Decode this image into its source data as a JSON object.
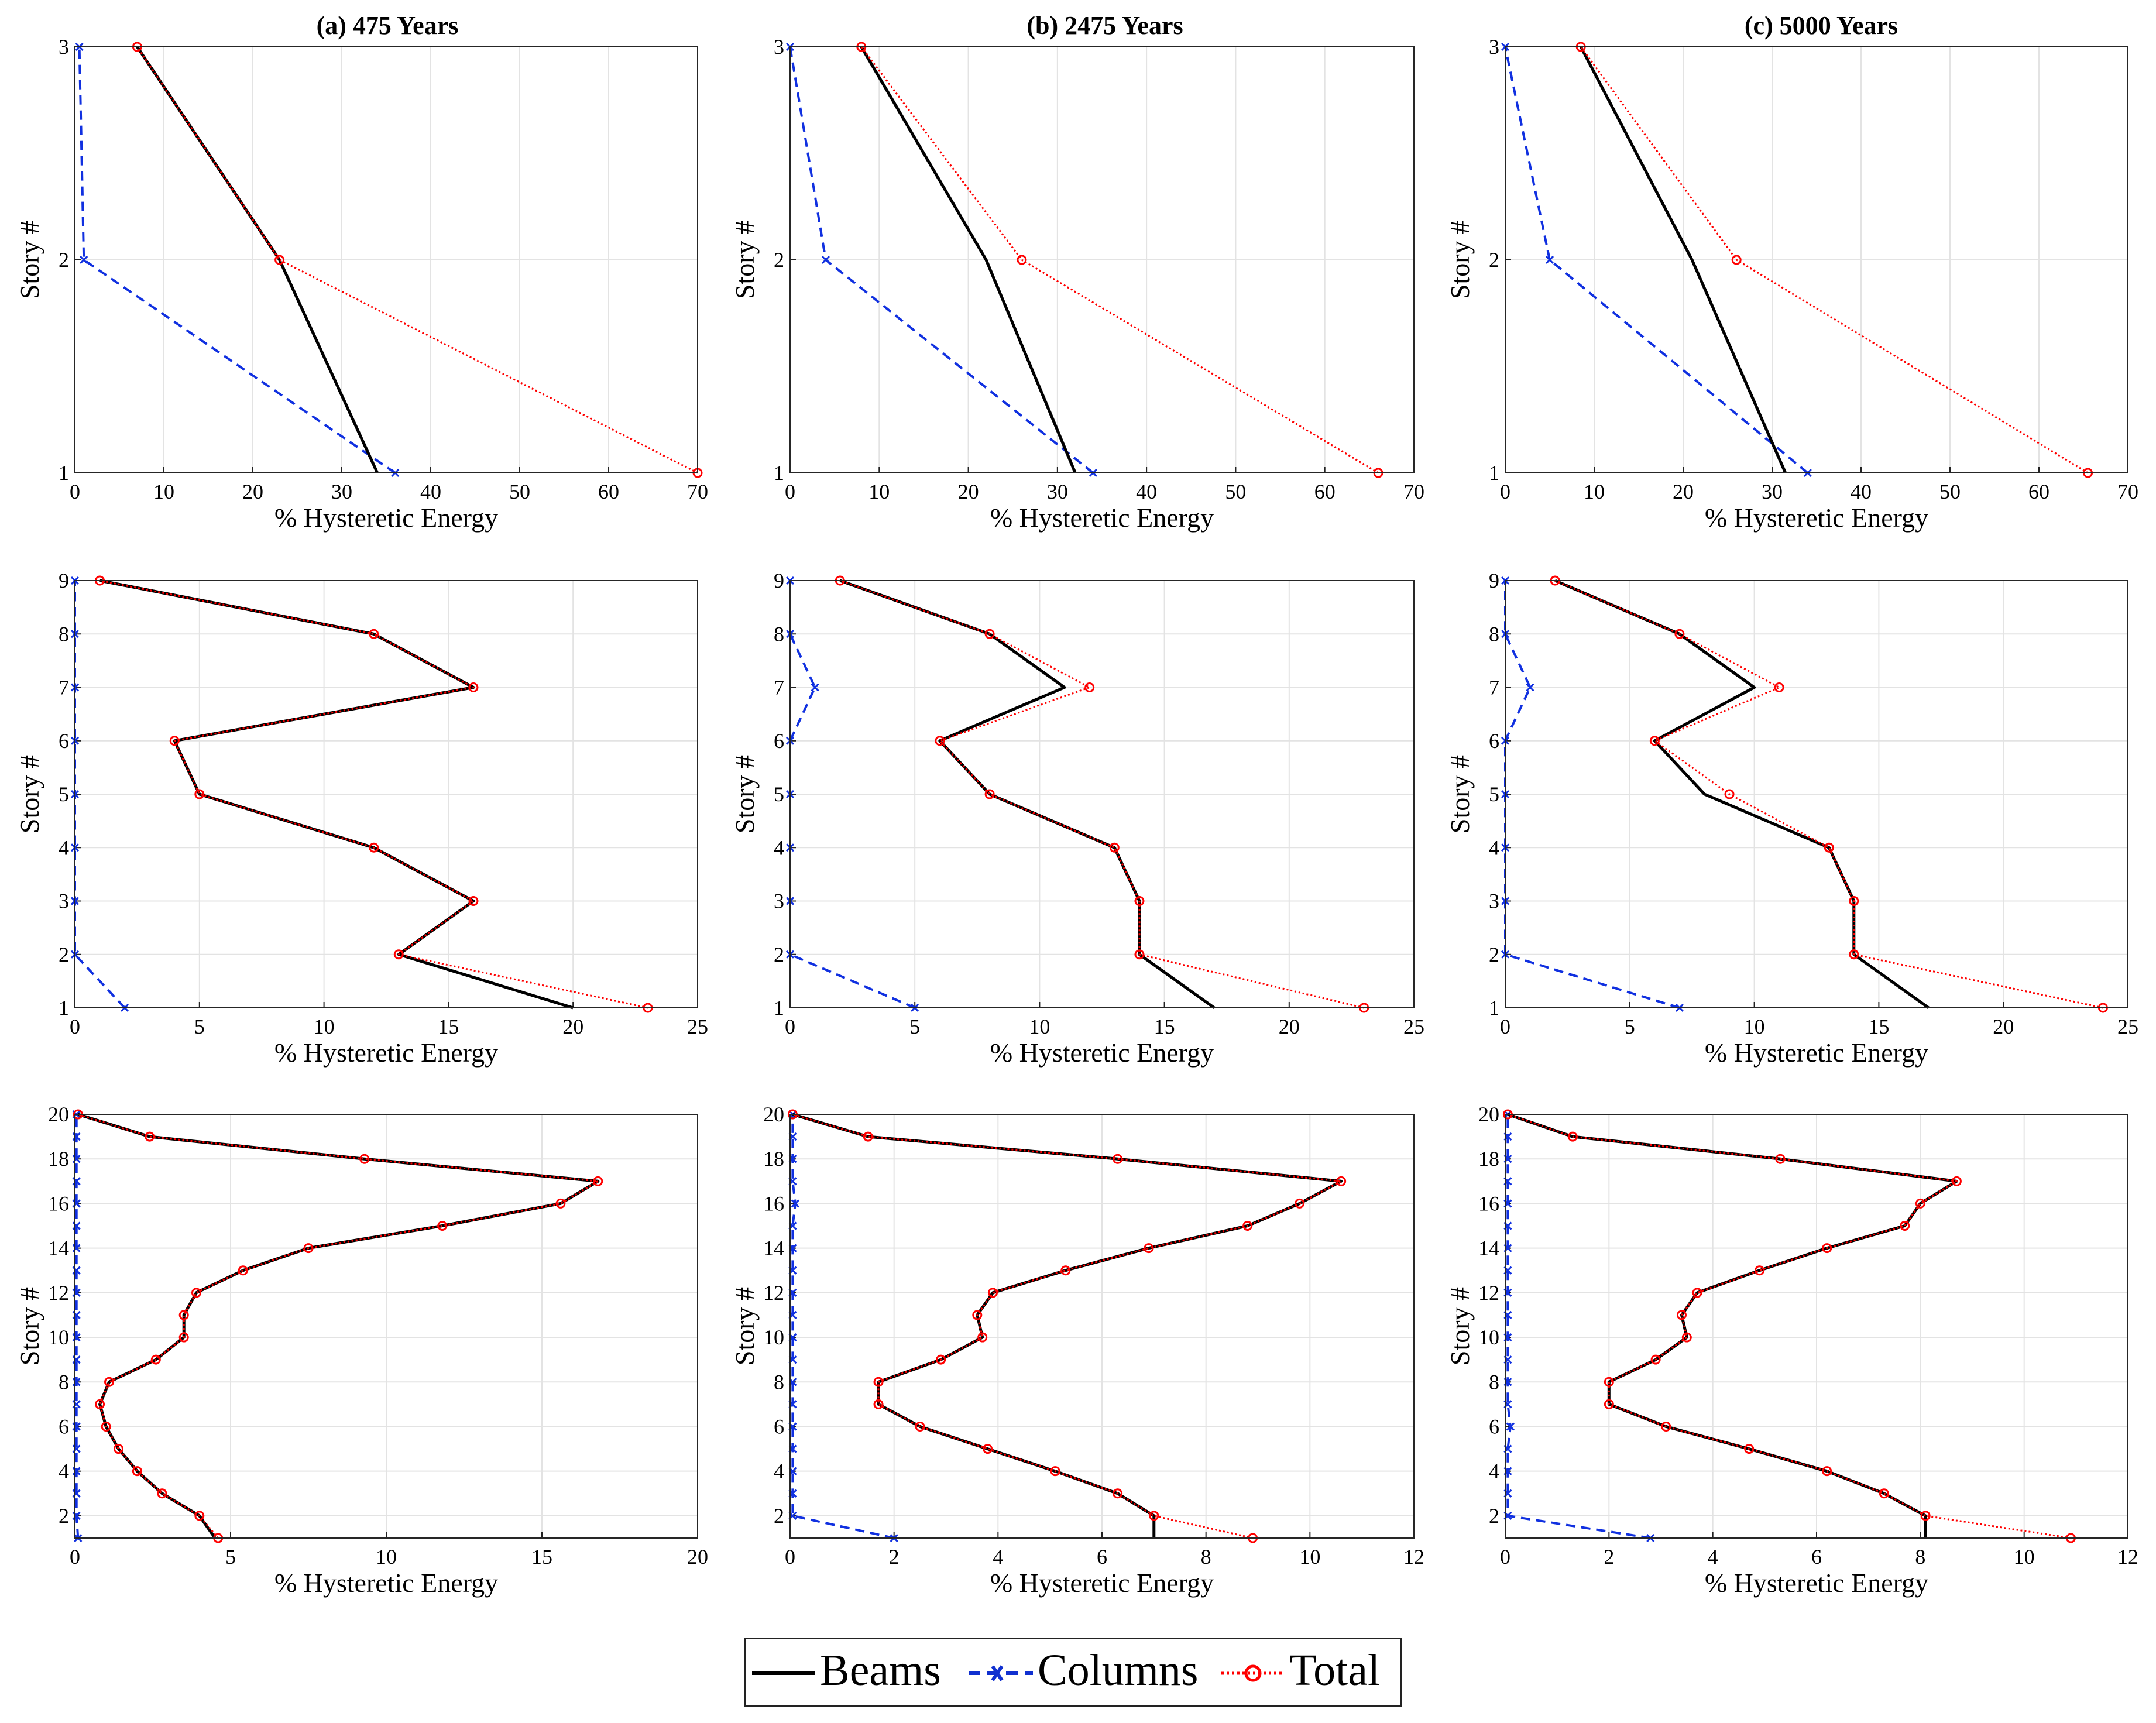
{
  "figure": {
    "column_titles": [
      "(a) 475 Years",
      "(b) 2475 Years",
      "(c) 5000 Years"
    ],
    "xlabel": "% Hysteretic Energy",
    "ylabel": "Story #"
  },
  "legend": [
    {
      "name": "Beams",
      "color": "#000000",
      "style": "solid",
      "marker": "none"
    },
    {
      "name": "Columns",
      "color": "#0000ff",
      "style": "dashed",
      "marker": "x"
    },
    {
      "name": "Total",
      "color": "#ff0000",
      "style": "dotted",
      "marker": "circle"
    }
  ],
  "chart_data": [
    {
      "type": "line",
      "title": "(a) 475 Years",
      "xlabel": "% Hysteretic Energy",
      "ylabel": "Story #",
      "xlim": [
        0,
        70
      ],
      "ylim": [
        1,
        3
      ],
      "xticks": [
        0,
        10,
        20,
        30,
        40,
        50,
        60,
        70
      ],
      "yticks": [
        1,
        2,
        3
      ],
      "grid": true,
      "series": [
        {
          "name": "Beams",
          "x": [
            34,
            23,
            7
          ],
          "y": [
            1,
            2,
            3
          ]
        },
        {
          "name": "Columns",
          "x": [
            36,
            1,
            0.5
          ],
          "y": [
            1,
            2,
            3
          ]
        },
        {
          "name": "Total",
          "x": [
            70,
            23,
            7
          ],
          "y": [
            1,
            2,
            3
          ]
        }
      ]
    },
    {
      "type": "line",
      "title": "(b) 2475 Years",
      "xlabel": "% Hysteretic Energy",
      "ylabel": "Story #",
      "xlim": [
        0,
        70
      ],
      "ylim": [
        1,
        3
      ],
      "xticks": [
        0,
        10,
        20,
        30,
        40,
        50,
        60,
        70
      ],
      "yticks": [
        1,
        2,
        3
      ],
      "grid": true,
      "series": [
        {
          "name": "Beams",
          "x": [
            32,
            22,
            8
          ],
          "y": [
            1,
            2,
            3
          ]
        },
        {
          "name": "Columns",
          "x": [
            34,
            4,
            0
          ],
          "y": [
            1,
            2,
            3
          ]
        },
        {
          "name": "Total",
          "x": [
            66,
            26,
            8
          ],
          "y": [
            1,
            2,
            3
          ]
        }
      ]
    },
    {
      "type": "line",
      "title": "(c) 5000 Years",
      "xlabel": "% Hysteretic Energy",
      "ylabel": "Story #",
      "xlim": [
        0,
        70
      ],
      "ylim": [
        1,
        3
      ],
      "xticks": [
        0,
        10,
        20,
        30,
        40,
        50,
        60,
        70
      ],
      "yticks": [
        1,
        2,
        3
      ],
      "grid": true,
      "series": [
        {
          "name": "Beams",
          "x": [
            31.5,
            21,
            8.5
          ],
          "y": [
            1,
            2,
            3
          ]
        },
        {
          "name": "Columns",
          "x": [
            34,
            5,
            0
          ],
          "y": [
            1,
            2,
            3
          ]
        },
        {
          "name": "Total",
          "x": [
            65.5,
            26,
            8.5
          ],
          "y": [
            1,
            2,
            3
          ]
        }
      ]
    },
    {
      "type": "line",
      "title": "",
      "xlabel": "% Hysteretic Energy",
      "ylabel": "Story #",
      "xlim": [
        0,
        25
      ],
      "ylim": [
        1,
        9
      ],
      "xticks": [
        0,
        5,
        10,
        15,
        20,
        25
      ],
      "yticks": [
        1,
        2,
        3,
        4,
        5,
        6,
        7,
        8,
        9
      ],
      "grid": true,
      "series": [
        {
          "name": "Beams",
          "x": [
            20,
            13,
            16,
            12,
            5,
            4,
            16,
            12,
            1
          ],
          "y": [
            1,
            2,
            3,
            4,
            5,
            6,
            7,
            8,
            9
          ]
        },
        {
          "name": "Columns",
          "x": [
            2,
            0,
            0,
            0,
            0,
            0,
            0,
            0,
            0
          ],
          "y": [
            1,
            2,
            3,
            4,
            5,
            6,
            7,
            8,
            9
          ]
        },
        {
          "name": "Total",
          "x": [
            23,
            13,
            16,
            12,
            5,
            4,
            16,
            12,
            1
          ],
          "y": [
            1,
            2,
            3,
            4,
            5,
            6,
            7,
            8,
            9
          ]
        }
      ]
    },
    {
      "type": "line",
      "title": "",
      "xlabel": "% Hysteretic Energy",
      "ylabel": "Story #",
      "xlim": [
        0,
        25
      ],
      "ylim": [
        1,
        9
      ],
      "xticks": [
        0,
        5,
        10,
        15,
        20,
        25
      ],
      "yticks": [
        1,
        2,
        3,
        4,
        5,
        6,
        7,
        8,
        9
      ],
      "grid": true,
      "series": [
        {
          "name": "Beams",
          "x": [
            17,
            14,
            14,
            13,
            8,
            6,
            11,
            8,
            2
          ],
          "y": [
            1,
            2,
            3,
            4,
            5,
            6,
            7,
            8,
            9
          ]
        },
        {
          "name": "Columns",
          "x": [
            5,
            0,
            0,
            0,
            0,
            0,
            1,
            0,
            0
          ],
          "y": [
            1,
            2,
            3,
            4,
            5,
            6,
            7,
            8,
            9
          ]
        },
        {
          "name": "Total",
          "x": [
            23,
            14,
            14,
            13,
            8,
            6,
            12,
            8,
            2
          ],
          "y": [
            1,
            2,
            3,
            4,
            5,
            6,
            7,
            8,
            9
          ]
        }
      ]
    },
    {
      "type": "line",
      "title": "",
      "xlabel": "% Hysteretic Energy",
      "ylabel": "Story #",
      "xlim": [
        0,
        25
      ],
      "ylim": [
        1,
        9
      ],
      "xticks": [
        0,
        5,
        10,
        15,
        20,
        25
      ],
      "yticks": [
        1,
        2,
        3,
        4,
        5,
        6,
        7,
        8,
        9
      ],
      "grid": true,
      "series": [
        {
          "name": "Beams",
          "x": [
            17,
            14,
            14,
            13,
            8,
            6,
            10,
            7,
            2
          ],
          "y": [
            1,
            2,
            3,
            4,
            5,
            6,
            7,
            8,
            9
          ]
        },
        {
          "name": "Columns",
          "x": [
            7,
            0,
            0,
            0,
            0,
            0,
            1,
            0,
            0
          ],
          "y": [
            1,
            2,
            3,
            4,
            5,
            6,
            7,
            8,
            9
          ]
        },
        {
          "name": "Total",
          "x": [
            24,
            14,
            14,
            13,
            9,
            6,
            11,
            7,
            2
          ],
          "y": [
            1,
            2,
            3,
            4,
            5,
            6,
            7,
            8,
            9
          ]
        }
      ]
    },
    {
      "type": "line",
      "title": "",
      "xlabel": "% Hysteretic Energy",
      "ylabel": "Story #",
      "xlim": [
        0,
        20
      ],
      "ylim": [
        1,
        20
      ],
      "xticks": [
        0,
        5,
        10,
        15,
        20
      ],
      "yticks": [
        2,
        4,
        6,
        8,
        10,
        12,
        14,
        16,
        18,
        20
      ],
      "grid": true,
      "series": [
        {
          "name": "Beams",
          "x": [
            4.5,
            4.0,
            2.8,
            2.0,
            1.4,
            1.0,
            0.8,
            1.1,
            2.6,
            3.5,
            3.5,
            3.9,
            5.4,
            7.5,
            11.8,
            15.6,
            16.8,
            9.3,
            2.4,
            0.1
          ],
          "y": [
            1,
            2,
            3,
            4,
            5,
            6,
            7,
            8,
            9,
            10,
            11,
            12,
            13,
            14,
            15,
            16,
            17,
            18,
            19,
            20
          ]
        },
        {
          "name": "Columns",
          "x": [
            0.1,
            0.05,
            0.05,
            0.05,
            0.05,
            0.05,
            0.05,
            0.05,
            0.05,
            0.05,
            0.05,
            0.05,
            0.05,
            0.05,
            0.05,
            0.05,
            0.05,
            0.05,
            0.05,
            0.05
          ],
          "y": [
            1,
            2,
            3,
            4,
            5,
            6,
            7,
            8,
            9,
            10,
            11,
            12,
            13,
            14,
            15,
            16,
            17,
            18,
            19,
            20
          ]
        },
        {
          "name": "Total",
          "x": [
            4.6,
            4.0,
            2.8,
            2.0,
            1.4,
            1.0,
            0.8,
            1.1,
            2.6,
            3.5,
            3.5,
            3.9,
            5.4,
            7.5,
            11.8,
            15.6,
            16.8,
            9.3,
            2.4,
            0.1
          ],
          "y": [
            1,
            2,
            3,
            4,
            5,
            6,
            7,
            8,
            9,
            10,
            11,
            12,
            13,
            14,
            15,
            16,
            17,
            18,
            19,
            20
          ]
        }
      ]
    },
    {
      "type": "line",
      "title": "",
      "xlabel": "% Hysteretic Energy",
      "ylabel": "Story #",
      "xlim": [
        0,
        12
      ],
      "ylim": [
        1,
        20
      ],
      "xticks": [
        0,
        2,
        4,
        6,
        8,
        10,
        12
      ],
      "yticks": [
        2,
        4,
        6,
        8,
        10,
        12,
        14,
        16,
        18,
        20
      ],
      "grid": true,
      "series": [
        {
          "name": "Beams",
          "x": [
            7.0,
            7.0,
            6.3,
            5.1,
            3.8,
            2.5,
            1.7,
            1.7,
            2.9,
            3.7,
            3.6,
            3.9,
            5.3,
            6.9,
            8.8,
            9.8,
            10.6,
            6.3,
            1.5,
            0.05
          ],
          "y": [
            1,
            2,
            3,
            4,
            5,
            6,
            7,
            8,
            9,
            10,
            11,
            12,
            13,
            14,
            15,
            16,
            17,
            18,
            19,
            20
          ]
        },
        {
          "name": "Columns",
          "x": [
            2.0,
            0.05,
            0.05,
            0.05,
            0.05,
            0.05,
            0.05,
            0.05,
            0.05,
            0.05,
            0.05,
            0.05,
            0.05,
            0.05,
            0.05,
            0.1,
            0.05,
            0.05,
            0.05,
            0.05
          ],
          "y": [
            1,
            2,
            3,
            4,
            5,
            6,
            7,
            8,
            9,
            10,
            11,
            12,
            13,
            14,
            15,
            16,
            17,
            18,
            19,
            20
          ]
        },
        {
          "name": "Total",
          "x": [
            8.9,
            7.0,
            6.3,
            5.1,
            3.8,
            2.5,
            1.7,
            1.7,
            2.9,
            3.7,
            3.6,
            3.9,
            5.3,
            6.9,
            8.8,
            9.8,
            10.6,
            6.3,
            1.5,
            0.05
          ],
          "y": [
            1,
            2,
            3,
            4,
            5,
            6,
            7,
            8,
            9,
            10,
            11,
            12,
            13,
            14,
            15,
            16,
            17,
            18,
            19,
            20
          ]
        }
      ]
    },
    {
      "type": "line",
      "title": "",
      "xlabel": "% Hysteretic Energy",
      "ylabel": "Story #",
      "xlim": [
        0,
        12
      ],
      "ylim": [
        1,
        20
      ],
      "xticks": [
        0,
        2,
        4,
        6,
        8,
        10,
        12
      ],
      "yticks": [
        2,
        4,
        6,
        8,
        10,
        12,
        14,
        16,
        18,
        20
      ],
      "grid": true,
      "series": [
        {
          "name": "Beams",
          "x": [
            8.1,
            8.1,
            7.3,
            6.2,
            4.7,
            3.1,
            2.0,
            2.0,
            2.9,
            3.5,
            3.4,
            3.7,
            4.9,
            6.2,
            7.7,
            8.0,
            8.7,
            5.3,
            1.3,
            0.05
          ],
          "y": [
            1,
            2,
            3,
            4,
            5,
            6,
            7,
            8,
            9,
            10,
            11,
            12,
            13,
            14,
            15,
            16,
            17,
            18,
            19,
            20
          ]
        },
        {
          "name": "Columns",
          "x": [
            2.8,
            0.05,
            0.05,
            0.05,
            0.05,
            0.1,
            0.05,
            0.05,
            0.05,
            0.05,
            0.05,
            0.05,
            0.05,
            0.05,
            0.05,
            0.05,
            0.05,
            0.05,
            0.05,
            0.05
          ],
          "y": [
            1,
            2,
            3,
            4,
            5,
            6,
            7,
            8,
            9,
            10,
            11,
            12,
            13,
            14,
            15,
            16,
            17,
            18,
            19,
            20
          ]
        },
        {
          "name": "Total",
          "x": [
            10.9,
            8.1,
            7.3,
            6.2,
            4.7,
            3.1,
            2.0,
            2.0,
            2.9,
            3.5,
            3.4,
            3.7,
            4.9,
            6.2,
            7.7,
            8.0,
            8.7,
            5.3,
            1.3,
            0.05
          ],
          "y": [
            1,
            2,
            3,
            4,
            5,
            6,
            7,
            8,
            9,
            10,
            11,
            12,
            13,
            14,
            15,
            16,
            17,
            18,
            19,
            20
          ]
        }
      ]
    }
  ]
}
